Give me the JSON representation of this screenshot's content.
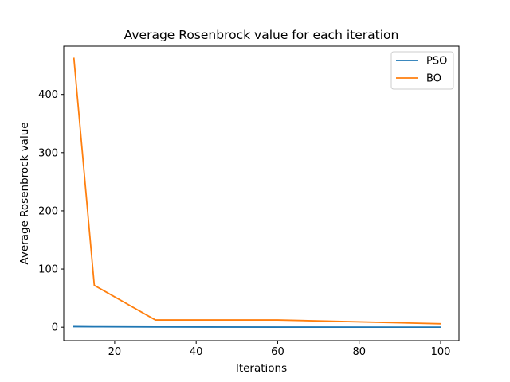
{
  "chart_data": {
    "type": "line",
    "title": "Average Rosenbrock value for each iteration",
    "xlabel": "Iterations",
    "ylabel": "Average Rosenbrock value",
    "xlim": [
      7.5,
      104.5
    ],
    "ylim": [
      -23,
      483
    ],
    "xticks": [
      20,
      40,
      60,
      80,
      100
    ],
    "yticks": [
      0,
      100,
      200,
      300,
      400
    ],
    "grid": false,
    "legend_position": "top-right",
    "series": [
      {
        "name": "PSO",
        "color": "#1f77b4",
        "x": [
          10,
          15,
          30,
          60,
          100
        ],
        "y": [
          1,
          0.8,
          0.4,
          0.2,
          0.1
        ]
      },
      {
        "name": "BO",
        "color": "#ff7f0e",
        "x": [
          10,
          15,
          30,
          60,
          100
        ],
        "y": [
          462,
          72,
          12.5,
          12.5,
          6
        ]
      }
    ]
  }
}
